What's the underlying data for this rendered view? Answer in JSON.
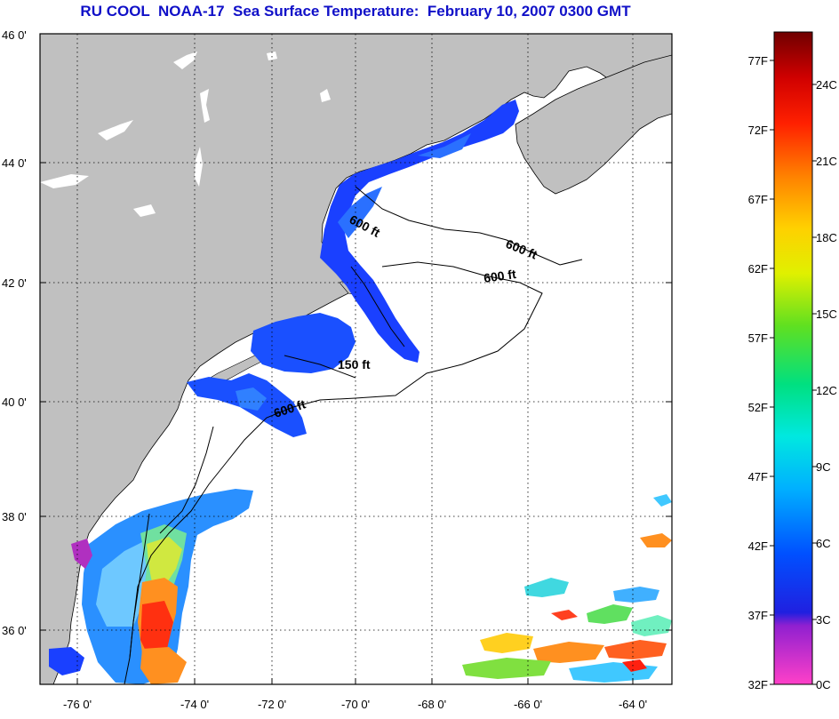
{
  "title": "RU COOL  NOAA-17  Sea Surface Temperature:  February 10, 2007 0300 GMT",
  "map": {
    "lat_labels": [
      "46 0'",
      "44 0'",
      "42 0'",
      "40 0'",
      "38 0'",
      "36 0'"
    ],
    "lon_labels": [
      "-76 0'",
      "-74 0'",
      "-72 0'",
      "-70 0'",
      "-68 0'",
      "-66 0'",
      "-64 0'"
    ],
    "depth_labels": [
      "600 ft",
      "600 ft",
      "600 ft",
      "150 ft",
      "600 ft"
    ],
    "land_color": "#c0c0c0"
  },
  "colorbar": {
    "fahrenheit_labels": [
      "77F",
      "72F",
      "67F",
      "62F",
      "57F",
      "52F",
      "47F",
      "42F",
      "37F",
      "32F"
    ],
    "celsius_labels": [
      "24C",
      "21C",
      "18C",
      "15C",
      "12C",
      "9C",
      "6C",
      "3C",
      "0C"
    ]
  }
}
